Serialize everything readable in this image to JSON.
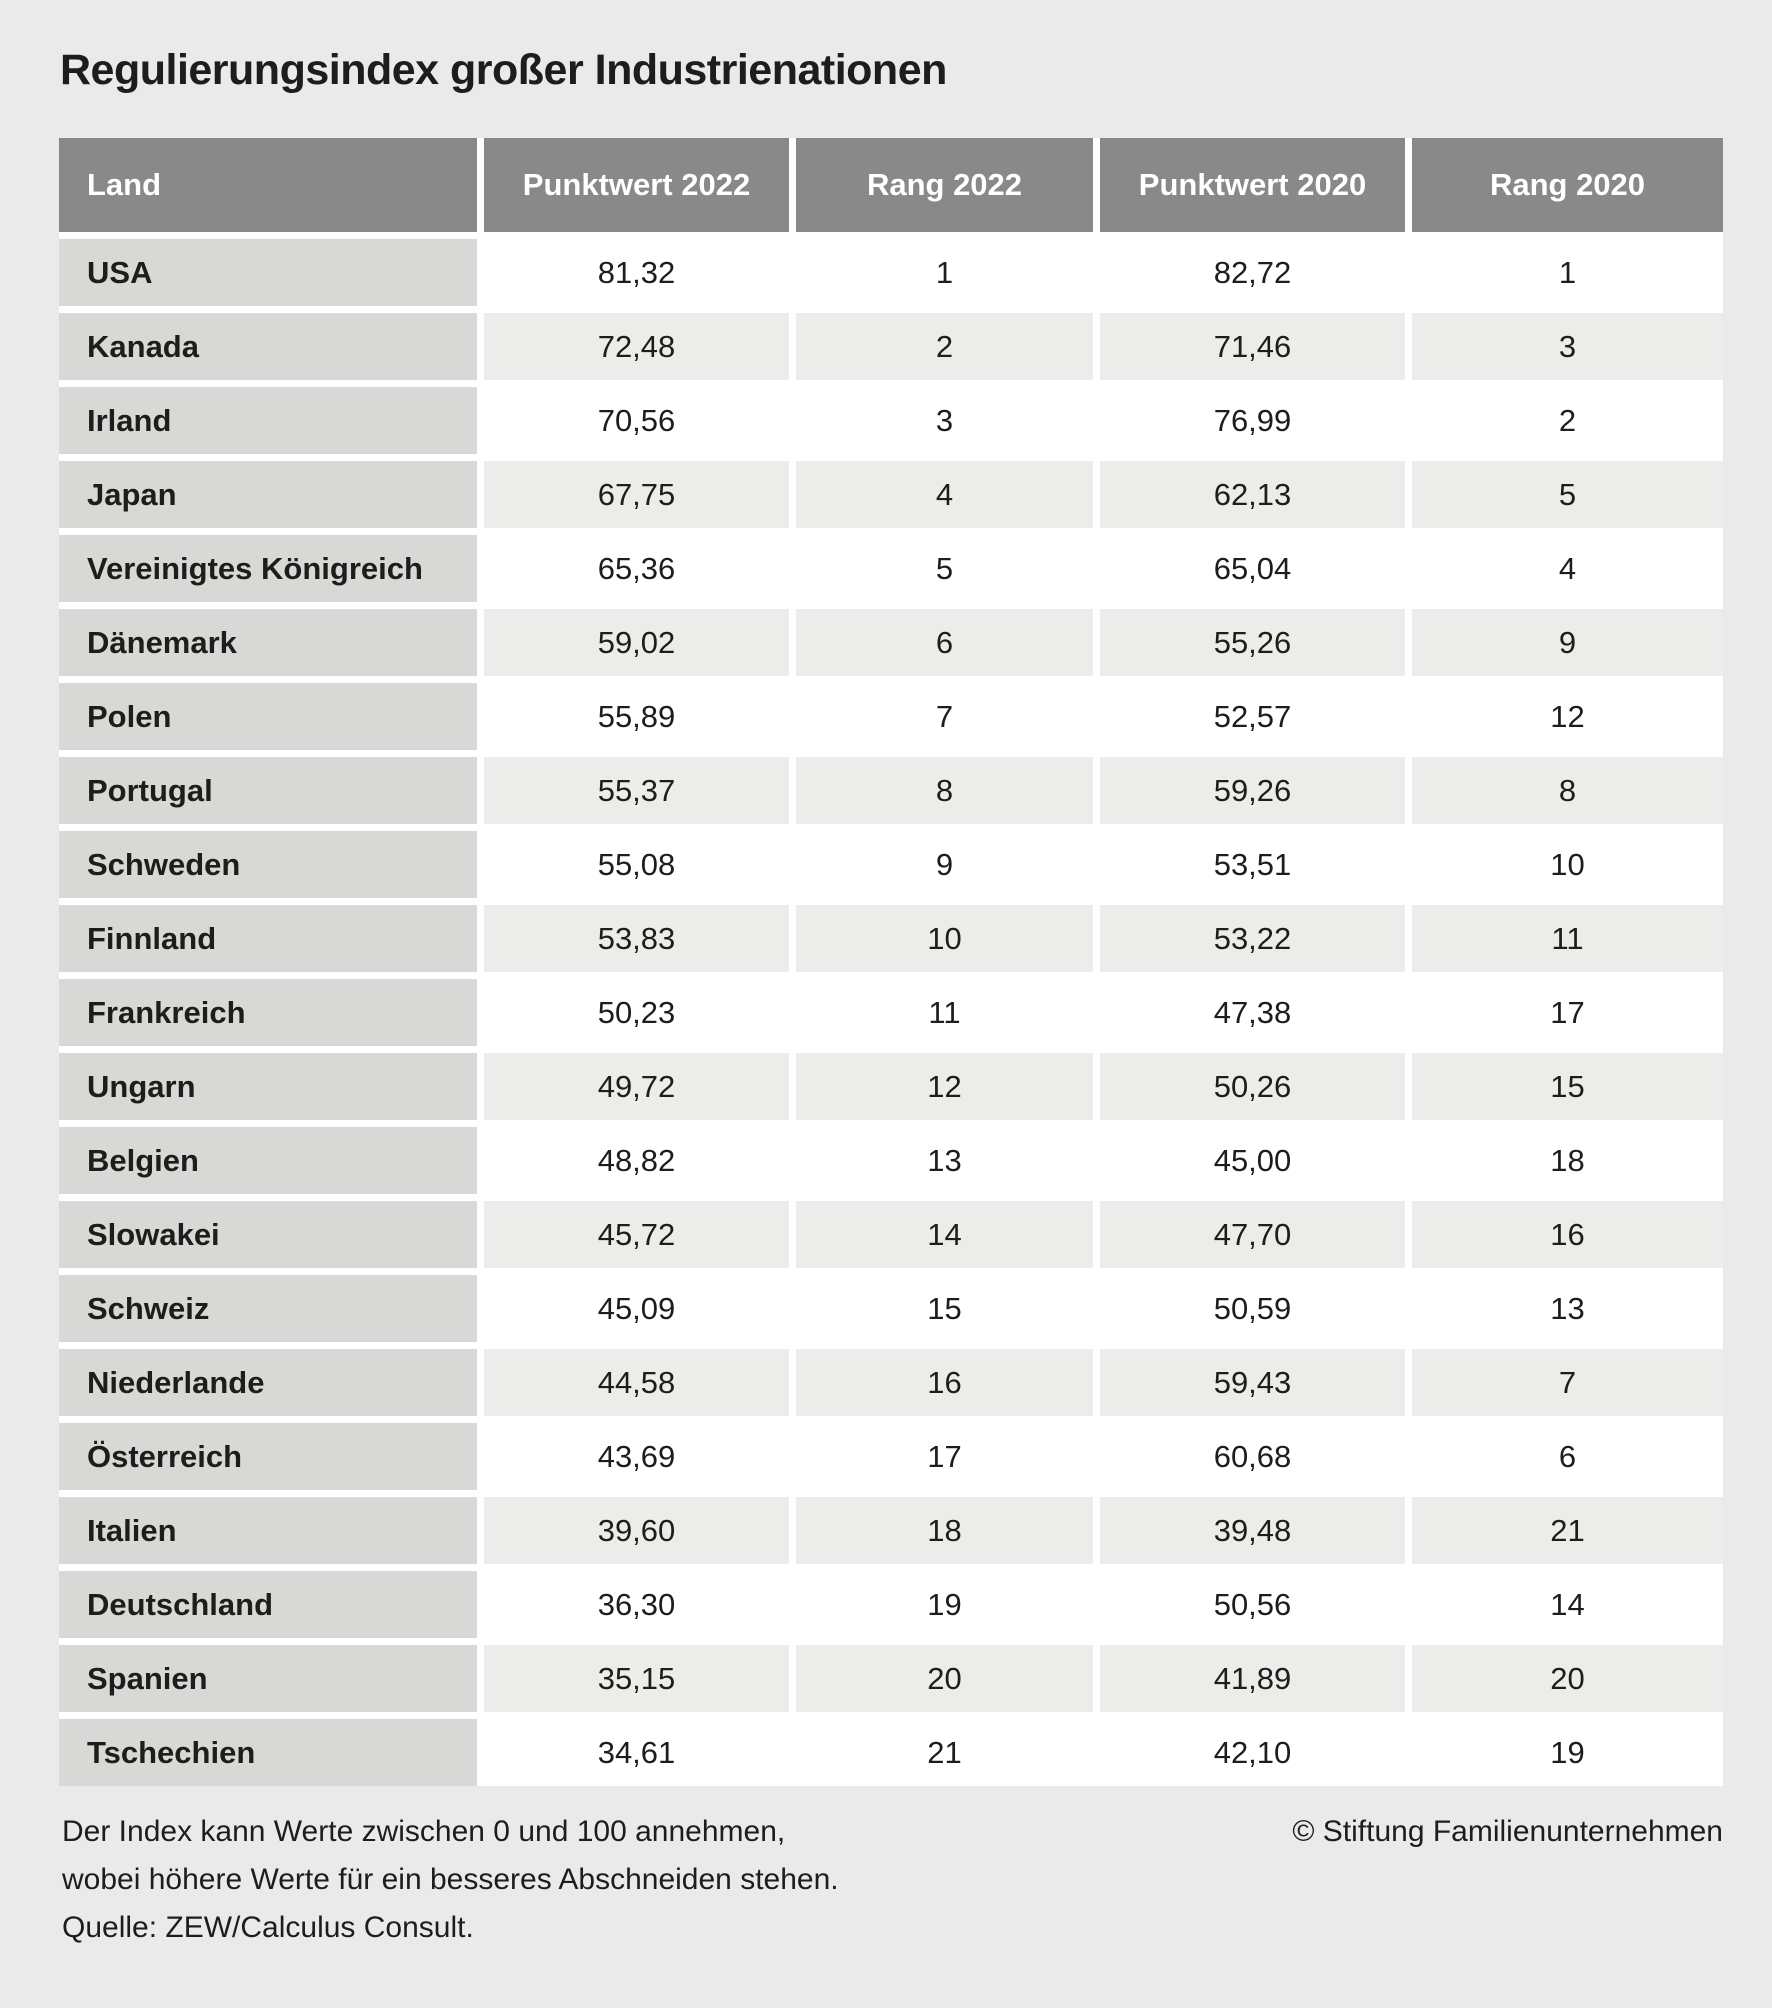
{
  "title": "Regulierungsindex großer Industrienationen",
  "table": {
    "columns": [
      "Land",
      "Punktwert 2022",
      "Rang 2022",
      "Punktwert 2020",
      "Rang 2020"
    ],
    "rows": [
      {
        "land": "USA",
        "p2022": "81,32",
        "r2022": "1",
        "p2020": "82,72",
        "r2020": "1"
      },
      {
        "land": "Kanada",
        "p2022": "72,48",
        "r2022": "2",
        "p2020": "71,46",
        "r2020": "3"
      },
      {
        "land": "Irland",
        "p2022": "70,56",
        "r2022": "3",
        "p2020": "76,99",
        "r2020": "2"
      },
      {
        "land": "Japan",
        "p2022": "67,75",
        "r2022": "4",
        "p2020": "62,13",
        "r2020": "5"
      },
      {
        "land": "Vereinigtes Königreich",
        "p2022": "65,36",
        "r2022": "5",
        "p2020": "65,04",
        "r2020": "4"
      },
      {
        "land": "Dänemark",
        "p2022": "59,02",
        "r2022": "6",
        "p2020": "55,26",
        "r2020": "9"
      },
      {
        "land": "Polen",
        "p2022": "55,89",
        "r2022": "7",
        "p2020": "52,57",
        "r2020": "12"
      },
      {
        "land": "Portugal",
        "p2022": "55,37",
        "r2022": "8",
        "p2020": "59,26",
        "r2020": "8"
      },
      {
        "land": "Schweden",
        "p2022": "55,08",
        "r2022": "9",
        "p2020": "53,51",
        "r2020": "10"
      },
      {
        "land": "Finnland",
        "p2022": "53,83",
        "r2022": "10",
        "p2020": "53,22",
        "r2020": "11"
      },
      {
        "land": "Frankreich",
        "p2022": "50,23",
        "r2022": "11",
        "p2020": "47,38",
        "r2020": "17"
      },
      {
        "land": "Ungarn",
        "p2022": "49,72",
        "r2022": "12",
        "p2020": "50,26",
        "r2020": "15"
      },
      {
        "land": "Belgien",
        "p2022": "48,82",
        "r2022": "13",
        "p2020": "45,00",
        "r2020": "18"
      },
      {
        "land": "Slowakei",
        "p2022": "45,72",
        "r2022": "14",
        "p2020": "47,70",
        "r2020": "16"
      },
      {
        "land": "Schweiz",
        "p2022": "45,09",
        "r2022": "15",
        "p2020": "50,59",
        "r2020": "13"
      },
      {
        "land": "Niederlande",
        "p2022": "44,58",
        "r2022": "16",
        "p2020": "59,43",
        "r2020": "7"
      },
      {
        "land": "Österreich",
        "p2022": "43,69",
        "r2022": "17",
        "p2020": "60,68",
        "r2020": "6"
      },
      {
        "land": "Italien",
        "p2022": "39,60",
        "r2022": "18",
        "p2020": "39,48",
        "r2020": "21"
      },
      {
        "land": "Deutschland",
        "p2022": "36,30",
        "r2022": "19",
        "p2020": "50,56",
        "r2020": "14"
      },
      {
        "land": "Spanien",
        "p2022": "35,15",
        "r2022": "20",
        "p2020": "41,89",
        "r2020": "20"
      },
      {
        "land": "Tschechien",
        "p2022": "34,61",
        "r2022": "21",
        "p2020": "42,10",
        "r2020": "19"
      }
    ]
  },
  "footnote": {
    "line1": "Der Index kann Werte zwischen 0 und 100 annehmen,",
    "line2": "wobei höhere Werte für ein besseres Abschneiden stehen.",
    "line3": "Quelle: ZEW/Calculus Consult.",
    "copyright": "© Stiftung Familienunternehmen"
  },
  "colors": {
    "page_background": "#eaeaea",
    "header_background": "#898989",
    "header_text": "#ffffff",
    "country_column_background": "#d8d8d7",
    "row_stripe_background": "#ececeb",
    "row_white_background": "#ffffff",
    "gutter": "#ffffff",
    "text": "#1d1d1b"
  },
  "chart_data": {
    "type": "table",
    "title": "Regulierungsindex großer Industrienationen",
    "columns": [
      "Land",
      "Punktwert 2022",
      "Rang 2022",
      "Punktwert 2020",
      "Rang 2020"
    ],
    "rows": [
      [
        "USA",
        81.32,
        1,
        82.72,
        1
      ],
      [
        "Kanada",
        72.48,
        2,
        71.46,
        3
      ],
      [
        "Irland",
        70.56,
        3,
        76.99,
        2
      ],
      [
        "Japan",
        67.75,
        4,
        62.13,
        5
      ],
      [
        "Vereinigtes Königreich",
        65.36,
        5,
        65.04,
        4
      ],
      [
        "Dänemark",
        59.02,
        6,
        55.26,
        9
      ],
      [
        "Polen",
        55.89,
        7,
        52.57,
        12
      ],
      [
        "Portugal",
        55.37,
        8,
        59.26,
        8
      ],
      [
        "Schweden",
        55.08,
        9,
        53.51,
        10
      ],
      [
        "Finnland",
        53.83,
        10,
        53.22,
        11
      ],
      [
        "Frankreich",
        50.23,
        11,
        47.38,
        17
      ],
      [
        "Ungarn",
        49.72,
        12,
        50.26,
        15
      ],
      [
        "Belgien",
        48.82,
        13,
        45.0,
        18
      ],
      [
        "Slowakei",
        45.72,
        14,
        47.7,
        16
      ],
      [
        "Schweiz",
        45.09,
        15,
        50.59,
        13
      ],
      [
        "Niederlande",
        44.58,
        16,
        59.43,
        7
      ],
      [
        "Österreich",
        43.69,
        17,
        60.68,
        6
      ],
      [
        "Italien",
        39.6,
        18,
        39.48,
        21
      ],
      [
        "Deutschland",
        36.3,
        19,
        50.56,
        14
      ],
      [
        "Spanien",
        35.15,
        20,
        41.89,
        20
      ],
      [
        "Tschechien",
        34.61,
        21,
        42.1,
        19
      ]
    ],
    "value_range": [
      0,
      100
    ],
    "notes": "Höhere Werte stehen für ein besseres Abschneiden. Quelle: ZEW/Calculus Consult."
  }
}
